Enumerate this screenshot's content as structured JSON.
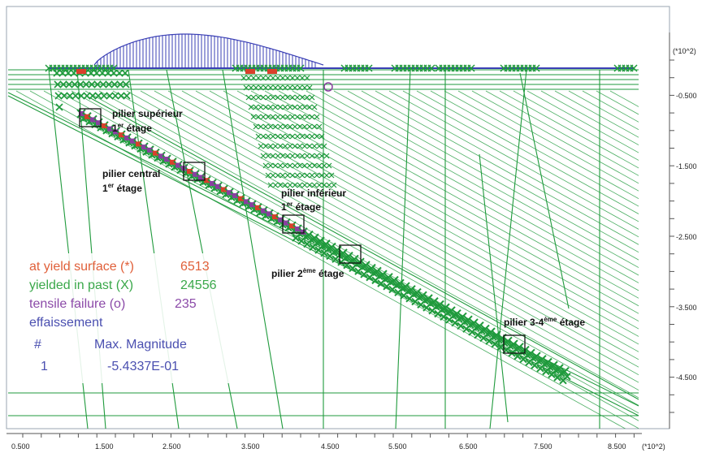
{
  "x_axis": {
    "ticks": [
      "0.500",
      "1.500",
      "2.500",
      "3.500",
      "4.500",
      "5.500",
      "6.500",
      "7.500",
      "8.500"
    ],
    "unit": "(*10^2)"
  },
  "y_axis": {
    "unit": "(*10^2)",
    "ticks": [
      "-0.500",
      "-1.500",
      "-2.500",
      "-3.500",
      "-4.500"
    ]
  },
  "annotations": {
    "pilier_sup": {
      "line1": "pilier supérieur",
      "line2_num": "1",
      "line2_sup": "er",
      "line2_rest": " étage"
    },
    "pilier_central": {
      "line1": "pilier central",
      "line2_num": "1",
      "line2_sup": "er",
      "line2_rest": " étage"
    },
    "pilier_inf": {
      "line1": "pilier inférieur",
      "line2_num": "1",
      "line2_sup": "er",
      "line2_rest": " étage"
    },
    "pilier_2": {
      "pre": "pilier 2",
      "sup": "ème",
      "post": " étage"
    },
    "pilier_34": {
      "pre": "pilier 3-4",
      "sup": "ème",
      "post": " étage"
    }
  },
  "legend": {
    "yield_label": "at yield surface (*)",
    "yield_value": "6513",
    "past_label": "yielded in past  (X)",
    "past_value": "24556",
    "tensile_label": "tensile failure  (o)",
    "tensile_value": "235",
    "effaissement": "effaissement",
    "hash": "#",
    "max_mag": "Max. Magnitude",
    "row_index": "1",
    "row_value": "-5.4337E-01"
  },
  "colors": {
    "green": "#1f9a3c",
    "red": "#d9402b",
    "purple": "#8a3fa0",
    "blue": "#3a3fb5",
    "legend_red": "#e0603a",
    "legend_green": "#3aa84a",
    "legend_purple": "#8b4aa8",
    "legend_blue": "#4a4fb0"
  }
}
